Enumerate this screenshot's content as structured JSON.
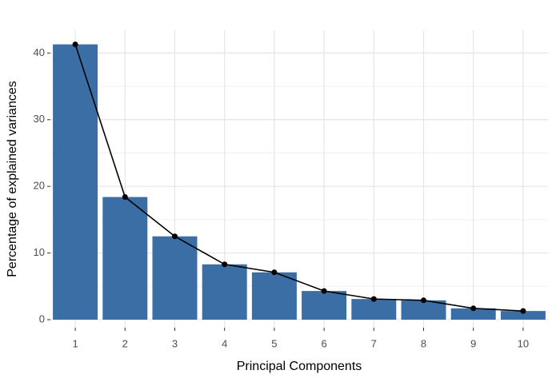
{
  "chart_data": {
    "type": "bar",
    "x_label": "Principal Components",
    "y_label": "Percentage of explained variances",
    "categories": [
      "1",
      "2",
      "3",
      "4",
      "5",
      "6",
      "7",
      "8",
      "9",
      "10"
    ],
    "values": [
      41.3,
      18.4,
      12.5,
      8.3,
      7.1,
      4.3,
      3.1,
      2.9,
      1.7,
      1.3
    ],
    "color": "#3a6ea5",
    "line_overlay": true,
    "line_color": "#000000",
    "ylim": [
      -1.2,
      43.4
    ],
    "yticks": [
      0,
      10,
      20,
      30,
      40
    ],
    "grid": true
  }
}
